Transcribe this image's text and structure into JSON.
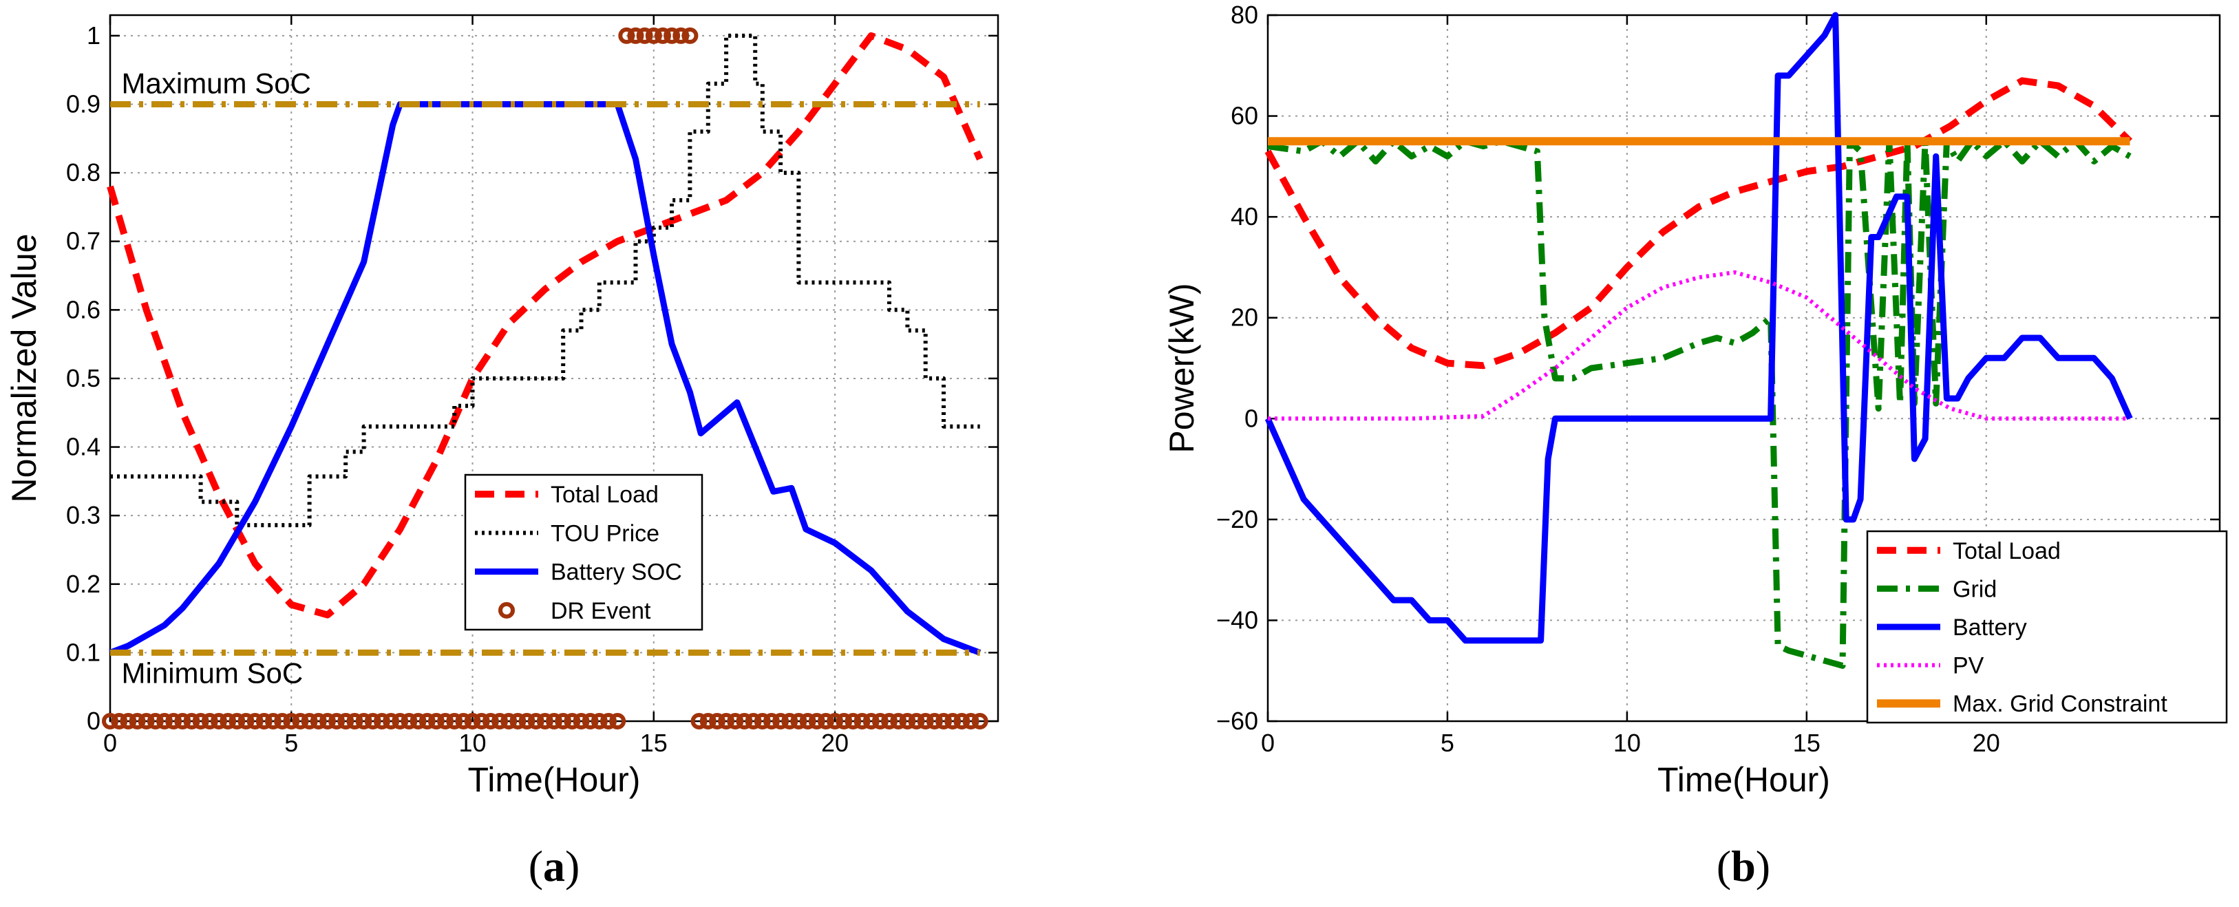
{
  "chart_data": [
    {
      "type": "line",
      "panel_label": "a",
      "xlabel": "Time(Hour)",
      "ylabel": "Normalized Value",
      "xlim": [
        0,
        24.5
      ],
      "ylim": [
        0,
        1.03
      ],
      "xticks": [
        0,
        5,
        10,
        15,
        20
      ],
      "yticks": [
        0,
        0.1,
        0.2,
        0.3,
        0.4,
        0.5,
        0.6,
        0.7,
        0.8,
        0.9,
        1
      ],
      "ytick_labels": [
        "0",
        "0.1",
        "0.2",
        "0.3",
        "0.4",
        "0.5",
        "0.6",
        "0.7",
        "0.8",
        "0.9",
        "1"
      ],
      "grid": true,
      "legend_position": "center-right",
      "annotations": [
        {
          "text": "Maximum SoC",
          "x": 0.2,
          "y": 0.93
        },
        {
          "text": "Minimum SoC",
          "x": 0.2,
          "y": 0.07
        }
      ],
      "series": [
        {
          "name": "Total Load",
          "style": "dashed",
          "color": "#ff0000",
          "x": [
            0,
            1,
            2,
            3,
            4,
            5,
            6,
            7,
            8,
            9,
            10,
            11,
            12,
            13,
            14,
            15,
            16,
            17,
            18,
            19,
            20,
            21,
            22,
            23,
            24
          ],
          "y": [
            0.78,
            0.6,
            0.45,
            0.33,
            0.23,
            0.17,
            0.155,
            0.2,
            0.28,
            0.38,
            0.5,
            0.58,
            0.63,
            0.67,
            0.7,
            0.72,
            0.74,
            0.76,
            0.8,
            0.86,
            0.93,
            1.0,
            0.98,
            0.94,
            0.82
          ]
        },
        {
          "name": "TOU Price",
          "style": "dotted",
          "color": "#000000",
          "x": [
            0,
            2.5,
            2.5,
            3.5,
            3.5,
            5.5,
            5.5,
            6.5,
            6.5,
            7,
            7,
            9.5,
            9.5,
            10,
            10,
            12.5,
            12.5,
            13,
            13,
            13.5,
            13.5,
            14,
            14,
            14.5,
            14.5,
            15,
            15,
            15.5,
            15.5,
            16,
            16,
            16.5,
            16.5,
            17,
            17,
            17.8,
            17.8,
            18,
            18,
            18.5,
            18.5,
            19,
            19,
            21.5,
            21.5,
            22,
            22,
            22.5,
            22.5,
            23,
            23,
            23.5,
            23.5,
            24
          ],
          "y": [
            0.357,
            0.357,
            0.32,
            0.32,
            0.286,
            0.286,
            0.357,
            0.357,
            0.393,
            0.393,
            0.43,
            0.43,
            0.46,
            0.46,
            0.5,
            0.5,
            0.57,
            0.57,
            0.6,
            0.6,
            0.64,
            0.64,
            0.64,
            0.64,
            0.7,
            0.7,
            0.72,
            0.72,
            0.76,
            0.76,
            0.86,
            0.86,
            0.93,
            0.93,
            1.0,
            1.0,
            0.93,
            0.93,
            0.86,
            0.86,
            0.8,
            0.8,
            0.64,
            0.64,
            0.6,
            0.6,
            0.57,
            0.57,
            0.5,
            0.5,
            0.43,
            0.43,
            0.43,
            0.43
          ]
        },
        {
          "name": "Battery SOC",
          "style": "solid",
          "color": "#0000ff",
          "x": [
            0,
            0.5,
            1,
            1.5,
            2,
            3,
            4,
            5,
            6,
            7,
            7.8,
            8,
            10,
            12,
            14,
            14.5,
            15,
            15.5,
            16,
            16.3,
            17.3,
            18.3,
            18.8,
            19.2,
            20,
            21,
            22,
            23,
            24
          ],
          "y": [
            0.1,
            0.11,
            0.125,
            0.14,
            0.165,
            0.23,
            0.32,
            0.43,
            0.55,
            0.67,
            0.87,
            0.9,
            0.9,
            0.9,
            0.9,
            0.82,
            0.68,
            0.55,
            0.48,
            0.42,
            0.465,
            0.335,
            0.34,
            0.28,
            0.26,
            0.22,
            0.16,
            0.12,
            0.1
          ]
        },
        {
          "name": "DR Event",
          "style": "markers",
          "color": "#a0320a",
          "segments": [
            {
              "x_start": 0,
              "x_end": 14,
              "y": 0,
              "step": 0.25
            },
            {
              "x_start": 14.25,
              "x_end": 16,
              "y": 1,
              "step": 0.25
            },
            {
              "x_start": 16.25,
              "x_end": 24,
              "y": 0,
              "step": 0.25
            }
          ]
        },
        {
          "name": "Maximum SoC",
          "style": "dashdot",
          "color": "#c08a0a",
          "legend": false,
          "x": [
            0,
            24
          ],
          "y": [
            0.9,
            0.9
          ]
        },
        {
          "name": "Minimum SoC",
          "style": "dashdot",
          "color": "#c08a0a",
          "legend": false,
          "x": [
            0,
            24
          ],
          "y": [
            0.1,
            0.1
          ]
        }
      ]
    },
    {
      "type": "line",
      "panel_label": "b",
      "xlabel": "Time(Hour)",
      "ylabel": "Power(kW)",
      "xlim": [
        0,
        26.5
      ],
      "ylim": [
        -60,
        80
      ],
      "xticks": [
        0,
        5,
        10,
        15,
        20
      ],
      "yticks": [
        -60,
        -40,
        -20,
        0,
        20,
        40,
        60,
        80
      ],
      "ytick_labels": [
        "−60",
        "−40",
        "−20",
        "0",
        "20",
        "40",
        "60",
        "80"
      ],
      "grid": true,
      "legend_position": "bottom-right",
      "series": [
        {
          "name": "Total Load",
          "style": "dashed",
          "color": "#ff0000",
          "x": [
            0,
            1,
            2,
            3,
            4,
            5,
            6,
            7,
            8,
            9,
            10,
            11,
            12,
            13,
            14,
            15,
            16,
            17,
            18,
            19,
            20,
            21,
            22,
            23,
            24
          ],
          "y": [
            53,
            40,
            28,
            20,
            14,
            11,
            10.5,
            13,
            17,
            22,
            30,
            37,
            42,
            45,
            47,
            49,
            50,
            52,
            54,
            58,
            63,
            67,
            66,
            62,
            55
          ]
        },
        {
          "name": "Grid",
          "style": "dashdot",
          "color": "#008000",
          "x": [
            0,
            1,
            1.5,
            2,
            2.5,
            3,
            3.5,
            4,
            4.5,
            5,
            5.5,
            6,
            6.5,
            7,
            7.5,
            7.7,
            8,
            8.5,
            9,
            10,
            11,
            12,
            12.5,
            13,
            13.5,
            14,
            14.2,
            14.5,
            15,
            15.5,
            16,
            16.2,
            16.5,
            17,
            17.3,
            17.6,
            17.8,
            18,
            18.3,
            18.6,
            18.9,
            19.2,
            19.6,
            20,
            20.5,
            21,
            21.5,
            22,
            22.5,
            23,
            23.5,
            24
          ],
          "y": [
            54,
            53,
            55,
            52,
            55,
            51,
            55,
            52,
            54,
            52,
            55,
            54,
            55,
            54,
            53,
            20,
            8,
            8,
            10,
            11,
            12,
            15,
            16,
            15,
            17,
            20,
            -45,
            -46,
            -47,
            -48,
            -49,
            55,
            53,
            2,
            55,
            3,
            55,
            3,
            55,
            3,
            55,
            51,
            55,
            52,
            55,
            51,
            55,
            52,
            55,
            51,
            54,
            52
          ]
        },
        {
          "name": "Battery",
          "style": "solid",
          "color": "#0000ff",
          "x": [
            0,
            0.5,
            1,
            1.5,
            2,
            2.5,
            3,
            3.5,
            4,
            4.5,
            5,
            5.5,
            6,
            7,
            7.6,
            7.8,
            8,
            9,
            10,
            11,
            12,
            13,
            14,
            14.2,
            14.5,
            15,
            15.5,
            15.8,
            16.1,
            16.3,
            16.5,
            16.8,
            17,
            17.5,
            17.8,
            18,
            18.3,
            18.6,
            18.9,
            19.2,
            19.5,
            20,
            20.5,
            21,
            21.5,
            22,
            22.5,
            23,
            23.5,
            24
          ],
          "y": [
            0,
            -8,
            -16,
            -20,
            -24,
            -28,
            -32,
            -36,
            -36,
            -40,
            -40,
            -44,
            -44,
            -44,
            -44,
            -8,
            0,
            0,
            0,
            0,
            0,
            0,
            0,
            68,
            68,
            72,
            76,
            80,
            -20,
            -20,
            -16,
            36,
            36,
            44,
            44,
            -8,
            -4,
            52,
            4,
            4,
            8,
            12,
            12,
            16,
            16,
            12,
            12,
            12,
            8,
            0
          ]
        },
        {
          "name": "PV",
          "style": "dotted",
          "color": "#ff00ff",
          "x": [
            0,
            4,
            6,
            7,
            8,
            9,
            10,
            11,
            12,
            13,
            14,
            15,
            16,
            17,
            18,
            19,
            20,
            21,
            22,
            23,
            24
          ],
          "y": [
            0,
            0,
            0.5,
            5,
            10,
            16,
            22,
            26,
            28,
            29,
            27,
            24,
            18,
            12,
            6,
            2,
            0,
            0,
            0,
            0,
            0
          ]
        },
        {
          "name": "Max. Grid Constraint",
          "style": "solid-thick",
          "color": "#f08000",
          "x": [
            0,
            24
          ],
          "y": [
            55,
            55
          ]
        }
      ]
    }
  ]
}
